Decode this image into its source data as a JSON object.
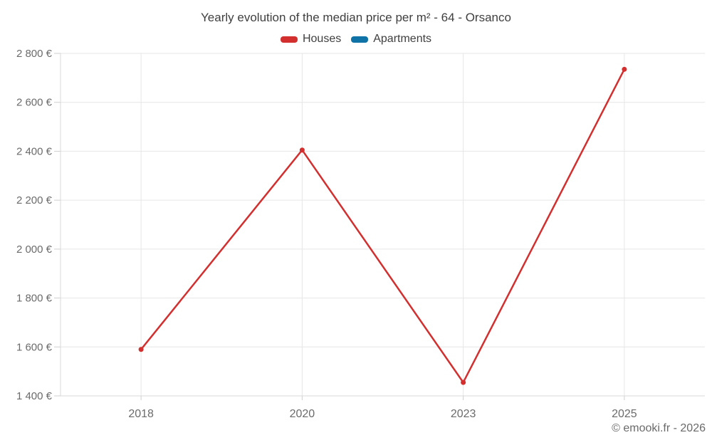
{
  "header": {
    "title": "Yearly evolution of the median price per m² - 64 - Orsanco"
  },
  "chart_data": {
    "type": "line",
    "title": "Yearly evolution of the median price per m² - 64 - Orsanco",
    "categories": [
      "2018",
      "2020",
      "2023",
      "2025"
    ],
    "series": [
      {
        "name": "Houses",
        "color": "#d32f2f",
        "values": [
          1590,
          2405,
          1455,
          2735
        ]
      },
      {
        "name": "Apartments",
        "color": "#0f73a8",
        "values": []
      }
    ],
    "xlabel": "",
    "ylabel": "",
    "ylim": [
      1400,
      2800
    ],
    "y_ticks": [
      1400,
      1600,
      1800,
      2000,
      2200,
      2400,
      2600,
      2800
    ],
    "y_tick_labels": [
      "1 400 €",
      "1 600 €",
      "1 800 €",
      "2 000 €",
      "2 200 €",
      "2 400 €",
      "2 600 €",
      "2 800 €"
    ],
    "currency": "€",
    "grid": true,
    "legend_position": "top"
  },
  "footer": {
    "copyright": "© emooki.fr - 2026"
  },
  "colors": {
    "grid": "#e6e6e6",
    "axis": "#d8d8d8",
    "tick": "#cfcfcf",
    "title_text": "#3f3f3f",
    "axis_text": "#6b6b6b",
    "footer_text": "#6a6a6a"
  }
}
